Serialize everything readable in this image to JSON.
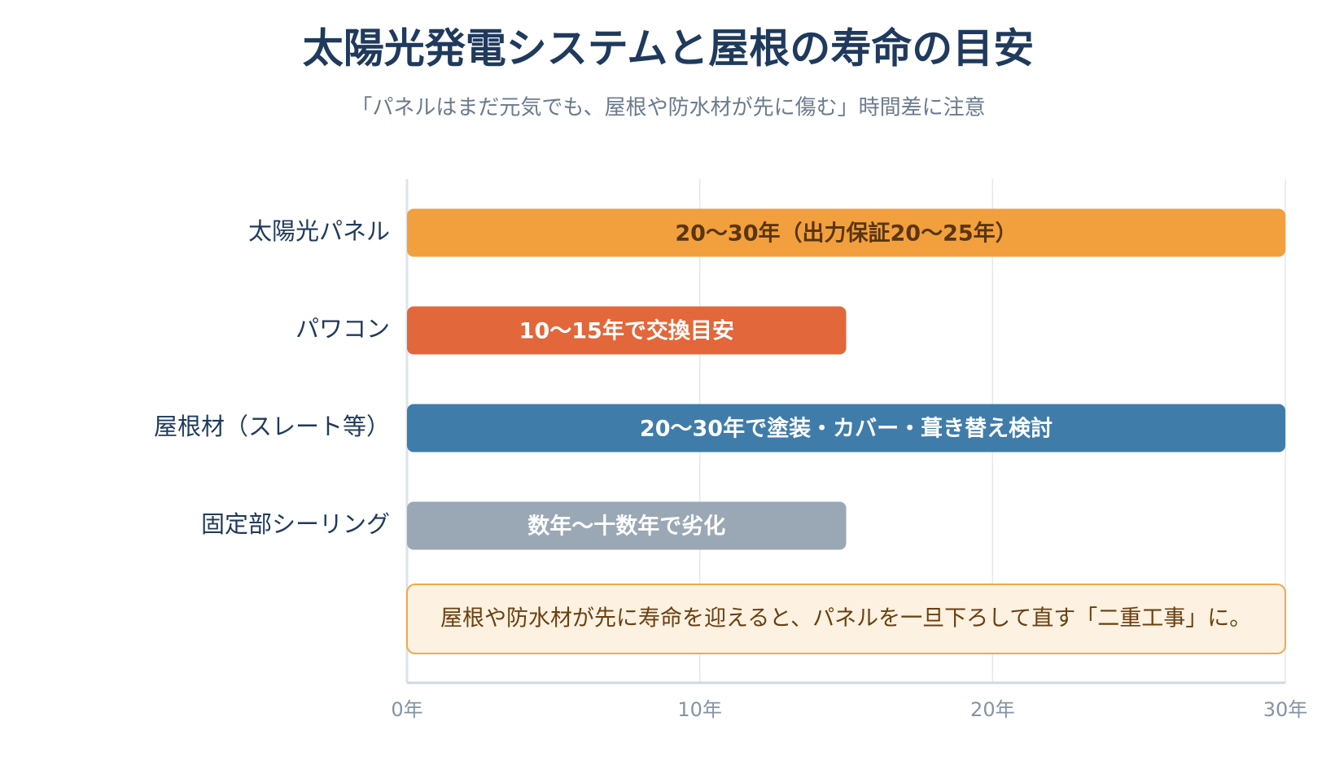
{
  "chart_data": {
    "type": "hbar",
    "title": "太陽光発電システムと屋根の寿命の目安",
    "subtitle": "「パネルはまだ元気でも、屋根や防水材が先に傷む」時間差に注意",
    "categories": [
      "太陽光パネル",
      "パワコン",
      "屋根材（スレート等）",
      "固定部シーリング"
    ],
    "values": [
      30,
      15,
      30,
      15
    ],
    "bar_labels": [
      "20〜30年（出力保証20〜25年）",
      "10〜15年で交換目安",
      "20〜30年で塗装・カバー・葺き替え検討",
      "数年〜十数年で劣化"
    ],
    "colors": [
      "#f2a03d",
      "#e2673a",
      "#3f7caa",
      "#9aa8b5"
    ],
    "label_colors": [
      "#5a3510",
      "#ffffff",
      "#ffffff",
      "#ffffff"
    ],
    "note": "屋根や防水材が先に寿命を迎えると、パネルを一旦下ろして直す「二重工事」に。",
    "xlim": [
      0,
      30
    ],
    "xticks": [
      {
        "value": 0,
        "label": "0年"
      },
      {
        "value": 10,
        "label": "10年"
      },
      {
        "value": 20,
        "label": "20年"
      },
      {
        "value": 30,
        "label": "30年"
      }
    ],
    "grid": true
  }
}
